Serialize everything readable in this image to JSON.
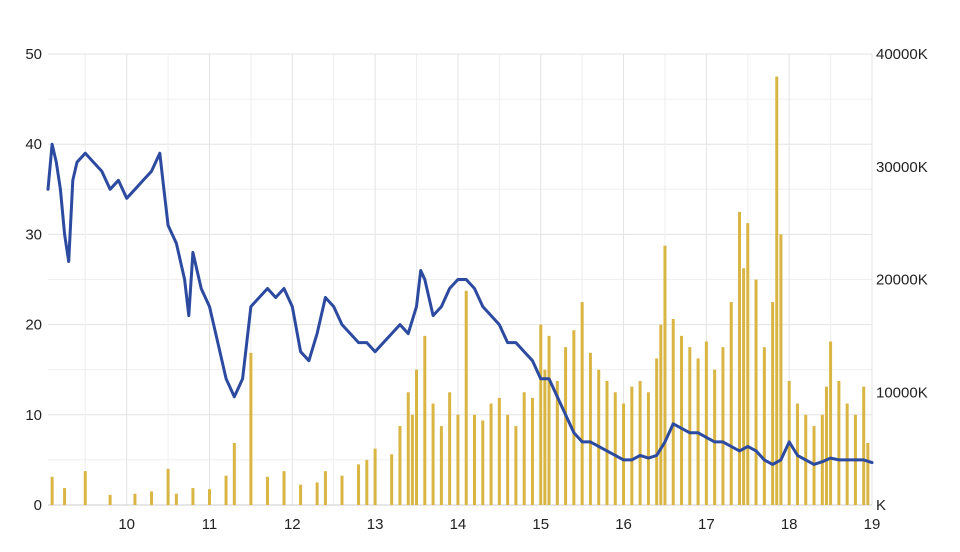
{
  "chart_data": {
    "type": "line+bar",
    "title": "",
    "xlabel": "",
    "ylabel": "",
    "x_ticks": [
      "10",
      "11",
      "12",
      "13",
      "14",
      "15",
      "16",
      "17",
      "18",
      "19"
    ],
    "y_left_ticks": [
      "0",
      "10",
      "20",
      "30",
      "40",
      "50"
    ],
    "y_right_ticks": [
      "K",
      "10000K",
      "20000K",
      "30000K",
      "40000K"
    ],
    "xlim": [
      9.05,
      19.0
    ],
    "ylim_left": [
      0,
      50
    ],
    "ylim_right": [
      0,
      40000
    ],
    "grid": true,
    "colors": {
      "line": "#2b4aa0",
      "bars": "#d9b544",
      "grid": "#e3e3e3"
    },
    "series": [
      {
        "type": "line",
        "axis": "left",
        "x": [
          9.05,
          9.1,
          9.15,
          9.2,
          9.25,
          9.3,
          9.35,
          9.4,
          9.5,
          9.6,
          9.7,
          9.8,
          9.9,
          10.0,
          10.1,
          10.2,
          10.3,
          10.4,
          10.45,
          10.5,
          10.6,
          10.7,
          10.75,
          10.8,
          10.9,
          11.0,
          11.1,
          11.2,
          11.3,
          11.35,
          11.4,
          11.5,
          11.6,
          11.7,
          11.8,
          11.9,
          12.0,
          12.1,
          12.2,
          12.3,
          12.4,
          12.5,
          12.6,
          12.7,
          12.8,
          12.9,
          13.0,
          13.1,
          13.2,
          13.3,
          13.4,
          13.5,
          13.55,
          13.6,
          13.7,
          13.8,
          13.9,
          14.0,
          14.1,
          14.2,
          14.3,
          14.4,
          14.5,
          14.6,
          14.7,
          14.8,
          14.9,
          15.0,
          15.1,
          15.2,
          15.3,
          15.4,
          15.5,
          15.6,
          15.7,
          15.8,
          15.9,
          16.0,
          16.1,
          16.2,
          16.3,
          16.4,
          16.5,
          16.6,
          16.7,
          16.8,
          16.9,
          17.0,
          17.1,
          17.2,
          17.3,
          17.4,
          17.5,
          17.6,
          17.7,
          17.8,
          17.9,
          18.0,
          18.1,
          18.2,
          18.3,
          18.4,
          18.5,
          18.6,
          18.7,
          18.8,
          18.9,
          19.0
        ],
        "values": [
          35,
          40,
          38,
          35,
          30,
          27,
          36,
          38,
          39,
          38,
          37,
          35,
          36,
          34,
          35,
          36,
          37,
          39,
          35,
          31,
          29,
          25,
          21,
          28,
          24,
          22,
          18,
          14,
          12,
          13,
          14,
          22,
          23,
          24,
          23,
          24,
          22,
          17,
          16,
          19,
          23,
          22,
          20,
          19,
          18,
          18,
          17,
          18,
          19,
          20,
          19,
          22,
          26,
          25,
          21,
          22,
          24,
          25,
          25,
          24,
          22,
          21,
          20,
          18,
          18,
          17,
          16,
          14,
          14,
          12,
          10,
          8,
          7,
          7,
          6.5,
          6,
          5.5,
          5,
          5,
          5.5,
          5.2,
          5.5,
          7,
          9,
          8.5,
          8,
          8,
          7.5,
          7,
          7,
          6.5,
          6,
          6.5,
          6,
          5,
          4.5,
          5,
          7,
          5.5,
          5,
          4.5,
          4.8,
          5.2,
          5,
          5,
          5,
          5,
          4.7
        ]
      },
      {
        "type": "bar",
        "axis": "right",
        "x": [
          9.1,
          9.25,
          9.5,
          9.8,
          10.1,
          10.3,
          10.5,
          10.6,
          10.8,
          11.0,
          11.2,
          11.3,
          11.5,
          11.7,
          11.9,
          12.1,
          12.3,
          12.4,
          12.6,
          12.8,
          12.9,
          13.0,
          13.2,
          13.3,
          13.4,
          13.45,
          13.5,
          13.6,
          13.7,
          13.8,
          13.9,
          14.0,
          14.1,
          14.2,
          14.3,
          14.4,
          14.5,
          14.6,
          14.7,
          14.8,
          14.9,
          15.0,
          15.05,
          15.1,
          15.2,
          15.3,
          15.4,
          15.5,
          15.6,
          15.7,
          15.8,
          15.9,
          16.0,
          16.1,
          16.2,
          16.3,
          16.4,
          16.45,
          16.5,
          16.6,
          16.7,
          16.8,
          16.9,
          17.0,
          17.1,
          17.2,
          17.3,
          17.4,
          17.45,
          17.5,
          17.6,
          17.7,
          17.8,
          17.85,
          17.9,
          18.0,
          18.1,
          18.2,
          18.3,
          18.4,
          18.45,
          18.5,
          18.6,
          18.7,
          18.8,
          18.9,
          18.95
        ],
        "values": [
          2500,
          1500,
          3000,
          900,
          1000,
          1200,
          3200,
          1000,
          1500,
          1400,
          2600,
          5500,
          13500,
          2500,
          3000,
          1800,
          2000,
          3000,
          2600,
          3600,
          4000,
          5000,
          4500,
          7000,
          10000,
          8000,
          12000,
          15000,
          9000,
          7000,
          10000,
          8000,
          19000,
          8000,
          7500,
          9000,
          9500,
          8000,
          7000,
          10000,
          9500,
          16000,
          12000,
          15000,
          11000,
          14000,
          15500,
          18000,
          13500,
          12000,
          11000,
          10000,
          9000,
          10500,
          11000,
          10000,
          13000,
          16000,
          23000,
          16500,
          15000,
          14000,
          13000,
          14500,
          12000,
          14000,
          18000,
          26000,
          21000,
          25000,
          20000,
          14000,
          18000,
          38000,
          24000,
          11000,
          9000,
          8000,
          7000,
          8000,
          10500,
          14500,
          11000,
          9000,
          8000,
          10500,
          5500
        ]
      }
    ]
  }
}
